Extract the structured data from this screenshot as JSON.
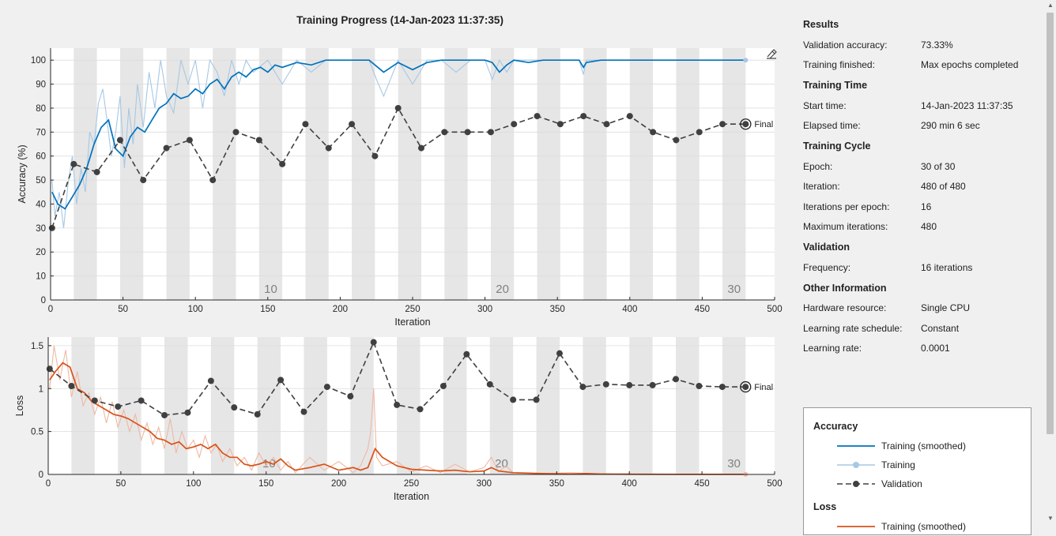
{
  "window": {
    "title": "Training Progress (14-Jan-2023 11:37:35)"
  },
  "colors": {
    "train_acc": "#0072BD",
    "train_acc_raw": "#A6C8E4",
    "train_loss": "#D95319",
    "train_loss_raw": "#EFB8A4",
    "validation": "#404040",
    "epoch_band": "#e6e6e6"
  },
  "icons": {
    "export": "export-icon"
  },
  "results": {
    "sections": [
      {
        "title": "Results",
        "rows": [
          {
            "k": "Validation accuracy:",
            "v": "73.33%"
          },
          {
            "k": "Training finished:",
            "v": "Max epochs completed"
          }
        ]
      },
      {
        "title": "Training Time",
        "rows": [
          {
            "k": "Start time:",
            "v": "14-Jan-2023 11:37:35"
          },
          {
            "k": "Elapsed time:",
            "v": "290 min 6 sec"
          }
        ]
      },
      {
        "title": "Training Cycle",
        "rows": [
          {
            "k": "Epoch:",
            "v": "30 of 30"
          },
          {
            "k": "Iteration:",
            "v": "480 of 480"
          },
          {
            "k": "Iterations per epoch:",
            "v": "16"
          },
          {
            "k": "Maximum iterations:",
            "v": "480"
          }
        ]
      },
      {
        "title": "Validation",
        "rows": [
          {
            "k": "Frequency:",
            "v": "16 iterations"
          }
        ]
      },
      {
        "title": "Other Information",
        "rows": [
          {
            "k": "Hardware resource:",
            "v": "Single CPU"
          },
          {
            "k": "Learning rate schedule:",
            "v": "Constant"
          },
          {
            "k": "Learning rate:",
            "v": "0.0001"
          }
        ]
      }
    ]
  },
  "legend": {
    "accuracy_title": "Accuracy",
    "loss_title": "Loss",
    "train_smoothed": "Training (smoothed)",
    "train": "Training",
    "validation": "Validation",
    "loss_train_smoothed": "Training (smoothed)"
  },
  "chart_data": [
    {
      "type": "line",
      "title": "",
      "xlabel": "Iteration",
      "ylabel": "Accuracy (%)",
      "xlim": [
        0,
        500
      ],
      "ylim": [
        0,
        105
      ],
      "xticks": [
        0,
        50,
        100,
        150,
        200,
        250,
        300,
        350,
        400,
        450,
        500
      ],
      "yticks": [
        0,
        10,
        20,
        30,
        40,
        50,
        60,
        70,
        80,
        90,
        100
      ],
      "epoch_labels": [
        {
          "epoch": 10,
          "label": "10"
        },
        {
          "epoch": 20,
          "label": "20"
        },
        {
          "epoch": 30,
          "label": "30"
        }
      ],
      "iterations_per_epoch": 16,
      "final_label": "Final",
      "series": [
        {
          "name": "Training (smoothed)",
          "x": [
            1,
            5,
            10,
            15,
            20,
            25,
            30,
            35,
            40,
            45,
            50,
            55,
            60,
            65,
            70,
            75,
            80,
            85,
            90,
            95,
            100,
            105,
            110,
            115,
            120,
            125,
            130,
            135,
            140,
            145,
            150,
            155,
            160,
            170,
            180,
            190,
            200,
            210,
            220,
            230,
            240,
            250,
            260,
            270,
            280,
            290,
            300,
            305,
            310,
            315,
            320,
            330,
            340,
            350,
            360,
            365,
            368,
            370,
            380,
            400,
            420,
            440,
            460,
            480
          ],
          "y": [
            45,
            40,
            38,
            43,
            48,
            55,
            65,
            72,
            75,
            63,
            60,
            68,
            72,
            70,
            75,
            80,
            82,
            86,
            84,
            85,
            88,
            86,
            90,
            92,
            88,
            93,
            95,
            93,
            96,
            97,
            95,
            98,
            97,
            99,
            98,
            100,
            100,
            100,
            100,
            95,
            99,
            96,
            99,
            100,
            100,
            100,
            100,
            99,
            95,
            98,
            100,
            99,
            100,
            100,
            100,
            100,
            97,
            99,
            100,
            100,
            100,
            100,
            100,
            100
          ]
        },
        {
          "name": "Training",
          "x": [
            1,
            3,
            6,
            9,
            12,
            15,
            18,
            21,
            24,
            27,
            30,
            33,
            36,
            39,
            42,
            45,
            48,
            51,
            54,
            57,
            60,
            64,
            68,
            72,
            76,
            80,
            85,
            90,
            95,
            100,
            105,
            110,
            115,
            120,
            125,
            130,
            135,
            140,
            150,
            160,
            170,
            180,
            190,
            200,
            210,
            220,
            225,
            230,
            240,
            250,
            260,
            270,
            280,
            290,
            300,
            305,
            310,
            315,
            320,
            330,
            350,
            365,
            368,
            370,
            400,
            480
          ],
          "y": [
            50,
            35,
            45,
            30,
            48,
            60,
            40,
            55,
            45,
            70,
            65,
            82,
            88,
            75,
            60,
            70,
            85,
            55,
            80,
            65,
            90,
            72,
            95,
            80,
            100,
            85,
            78,
            100,
            90,
            100,
            80,
            100,
            95,
            85,
            100,
            90,
            100,
            95,
            100,
            90,
            100,
            95,
            100,
            100,
            100,
            100,
            92,
            85,
            100,
            90,
            100,
            100,
            95,
            100,
            100,
            92,
            100,
            95,
            100,
            100,
            100,
            100,
            94,
            100,
            100,
            100
          ]
        },
        {
          "name": "Validation",
          "x": [
            1,
            16,
            32,
            48,
            64,
            80,
            96,
            112,
            128,
            144,
            160,
            176,
            192,
            208,
            224,
            240,
            256,
            272,
            288,
            304,
            320,
            336,
            352,
            368,
            384,
            400,
            416,
            432,
            448,
            464,
            480
          ],
          "y": [
            30,
            56.67,
            53.33,
            66.67,
            50,
            63.33,
            66.67,
            50,
            70,
            66.67,
            56.67,
            73.33,
            63.33,
            73.33,
            60,
            80,
            63.33,
            70,
            70,
            70,
            73.33,
            76.67,
            73.33,
            76.67,
            73.33,
            76.67,
            70,
            66.67,
            70,
            73.33,
            73.33
          ]
        }
      ]
    },
    {
      "type": "line",
      "title": "",
      "xlabel": "Iteration",
      "ylabel": "Loss",
      "xlim": [
        0,
        500
      ],
      "ylim": [
        0,
        1.6
      ],
      "xticks": [
        0,
        50,
        100,
        150,
        200,
        250,
        300,
        350,
        400,
        450,
        500
      ],
      "yticks": [
        0,
        0.5,
        1,
        1.5
      ],
      "ytick_labels": [
        "0",
        "0.5",
        "1",
        "1.5"
      ],
      "epoch_labels": [
        {
          "epoch": 10,
          "label": "10"
        },
        {
          "epoch": 20,
          "label": "20"
        },
        {
          "epoch": 30,
          "label": "30"
        }
      ],
      "iterations_per_epoch": 16,
      "final_label": "Final",
      "series": [
        {
          "name": "Training (smoothed)",
          "x": [
            1,
            5,
            10,
            15,
            20,
            25,
            30,
            35,
            40,
            45,
            50,
            55,
            60,
            65,
            70,
            75,
            80,
            85,
            90,
            95,
            100,
            105,
            110,
            115,
            120,
            125,
            130,
            135,
            140,
            145,
            150,
            155,
            160,
            165,
            170,
            180,
            190,
            200,
            210,
            215,
            220,
            225,
            230,
            240,
            250,
            260,
            270,
            280,
            290,
            300,
            305,
            310,
            320,
            340,
            360,
            370,
            380,
            400,
            440,
            480
          ],
          "y": [
            1.1,
            1.2,
            1.3,
            1.25,
            1.0,
            0.95,
            0.85,
            0.8,
            0.75,
            0.7,
            0.68,
            0.65,
            0.6,
            0.55,
            0.5,
            0.42,
            0.4,
            0.35,
            0.38,
            0.3,
            0.32,
            0.35,
            0.3,
            0.35,
            0.25,
            0.2,
            0.2,
            0.12,
            0.1,
            0.12,
            0.15,
            0.12,
            0.18,
            0.1,
            0.05,
            0.08,
            0.12,
            0.05,
            0.08,
            0.05,
            0.08,
            0.3,
            0.2,
            0.1,
            0.06,
            0.05,
            0.04,
            0.05,
            0.03,
            0.04,
            0.08,
            0.04,
            0.02,
            0.01,
            0.005,
            0.01,
            0.005,
            0.002,
            0.001,
            0.001
          ]
        },
        {
          "name": "Training",
          "x": [
            1,
            4,
            8,
            12,
            16,
            20,
            24,
            28,
            32,
            36,
            40,
            44,
            48,
            52,
            56,
            60,
            64,
            68,
            72,
            76,
            80,
            84,
            88,
            92,
            96,
            100,
            104,
            108,
            112,
            116,
            120,
            125,
            130,
            135,
            140,
            145,
            150,
            155,
            160,
            165,
            170,
            180,
            190,
            200,
            210,
            215,
            220,
            222,
            224,
            226,
            230,
            240,
            250,
            260,
            270,
            280,
            290,
            300,
            305,
            310,
            315,
            320,
            340,
            360,
            380,
            400,
            440,
            480
          ],
          "y": [
            1.0,
            1.5,
            1.1,
            1.45,
            0.9,
            1.2,
            0.8,
            0.95,
            0.7,
            0.9,
            0.6,
            0.85,
            0.55,
            0.75,
            0.5,
            0.7,
            0.4,
            0.6,
            0.35,
            0.55,
            0.3,
            0.65,
            0.25,
            0.5,
            0.3,
            0.4,
            0.2,
            0.45,
            0.25,
            0.35,
            0.15,
            0.3,
            0.1,
            0.2,
            0.05,
            0.25,
            0.1,
            0.2,
            0.05,
            0.15,
            0.02,
            0.2,
            0.05,
            0.15,
            0.02,
            0.1,
            0.3,
            0.5,
            1.0,
            0.2,
            0.1,
            0.15,
            0.03,
            0.1,
            0.02,
            0.12,
            0.03,
            0.08,
            0.2,
            0.03,
            0.1,
            0.02,
            0.01,
            0.02,
            0.005,
            0.01,
            0.002,
            0.001
          ]
        },
        {
          "name": "Validation",
          "x": [
            1,
            16,
            32,
            48,
            64,
            80,
            96,
            112,
            128,
            144,
            160,
            176,
            192,
            208,
            224,
            240,
            256,
            272,
            288,
            304,
            320,
            336,
            352,
            368,
            384,
            400,
            416,
            432,
            448,
            464,
            480
          ],
          "y": [
            1.23,
            1.03,
            0.86,
            0.79,
            0.86,
            0.69,
            0.72,
            1.09,
            0.78,
            0.7,
            1.1,
            0.73,
            1.02,
            0.91,
            1.54,
            0.81,
            0.76,
            1.03,
            1.4,
            1.05,
            0.87,
            0.87,
            1.41,
            1.02,
            1.05,
            1.04,
            1.04,
            1.11,
            1.03,
            1.02,
            1.02
          ]
        }
      ]
    }
  ]
}
